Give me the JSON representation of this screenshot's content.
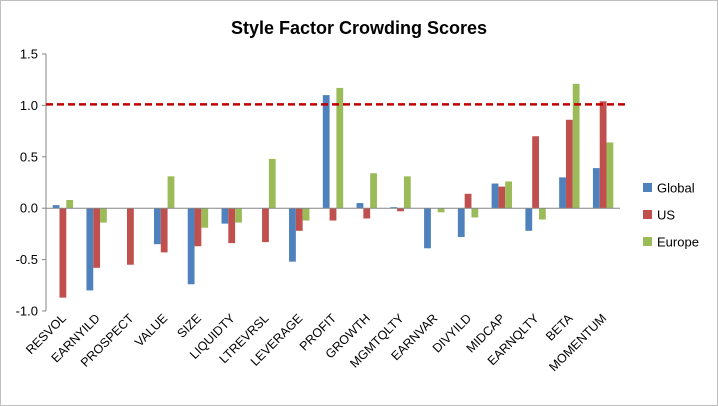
{
  "chart_data": {
    "type": "bar",
    "title": "Style Factor Crowding Scores",
    "categories": [
      "RESVOL",
      "EARNYILD",
      "PROSPECT",
      "VALUE",
      "SIZE",
      "LIQUIDTY",
      "LTREVRSL",
      "LEVERAGE",
      "PROFIT",
      "GROWTH",
      "MGMTQLTY",
      "EARNVAR",
      "DIVYILD",
      "MIDCAP",
      "EARNQLTY",
      "BETA",
      "MOMENTUM"
    ],
    "series": [
      {
        "name": "Global",
        "color": "#4f81bd",
        "values": [
          0.03,
          -0.8,
          0.0,
          -0.35,
          -0.74,
          -0.15,
          0.0,
          -0.52,
          1.1,
          0.05,
          0.01,
          -0.39,
          -0.28,
          0.24,
          -0.22,
          0.3,
          0.39
        ]
      },
      {
        "name": "US",
        "color": "#c0504d",
        "values": [
          -0.87,
          -0.58,
          -0.55,
          -0.43,
          -0.37,
          -0.34,
          -0.33,
          -0.22,
          -0.12,
          -0.1,
          -0.03,
          0.0,
          0.14,
          0.21,
          0.7,
          0.86,
          1.04
        ]
      },
      {
        "name": "Europe",
        "color": "#9bbb59",
        "values": [
          0.08,
          -0.14,
          0.0,
          0.31,
          -0.19,
          -0.14,
          0.48,
          -0.12,
          1.17,
          0.34,
          0.31,
          -0.04,
          -0.09,
          0.26,
          -0.11,
          1.21,
          0.64
        ]
      }
    ],
    "reference_line": {
      "value": 1.01,
      "color": "#c00000",
      "style": "dashed"
    },
    "ylim": [
      -1.0,
      1.5
    ],
    "yticks": [
      "-1.0",
      "-0.5",
      "0.0",
      "0.5",
      "1.0",
      "1.5"
    ],
    "grid": false,
    "legend_position": "right",
    "xlabel": "",
    "ylabel": ""
  }
}
